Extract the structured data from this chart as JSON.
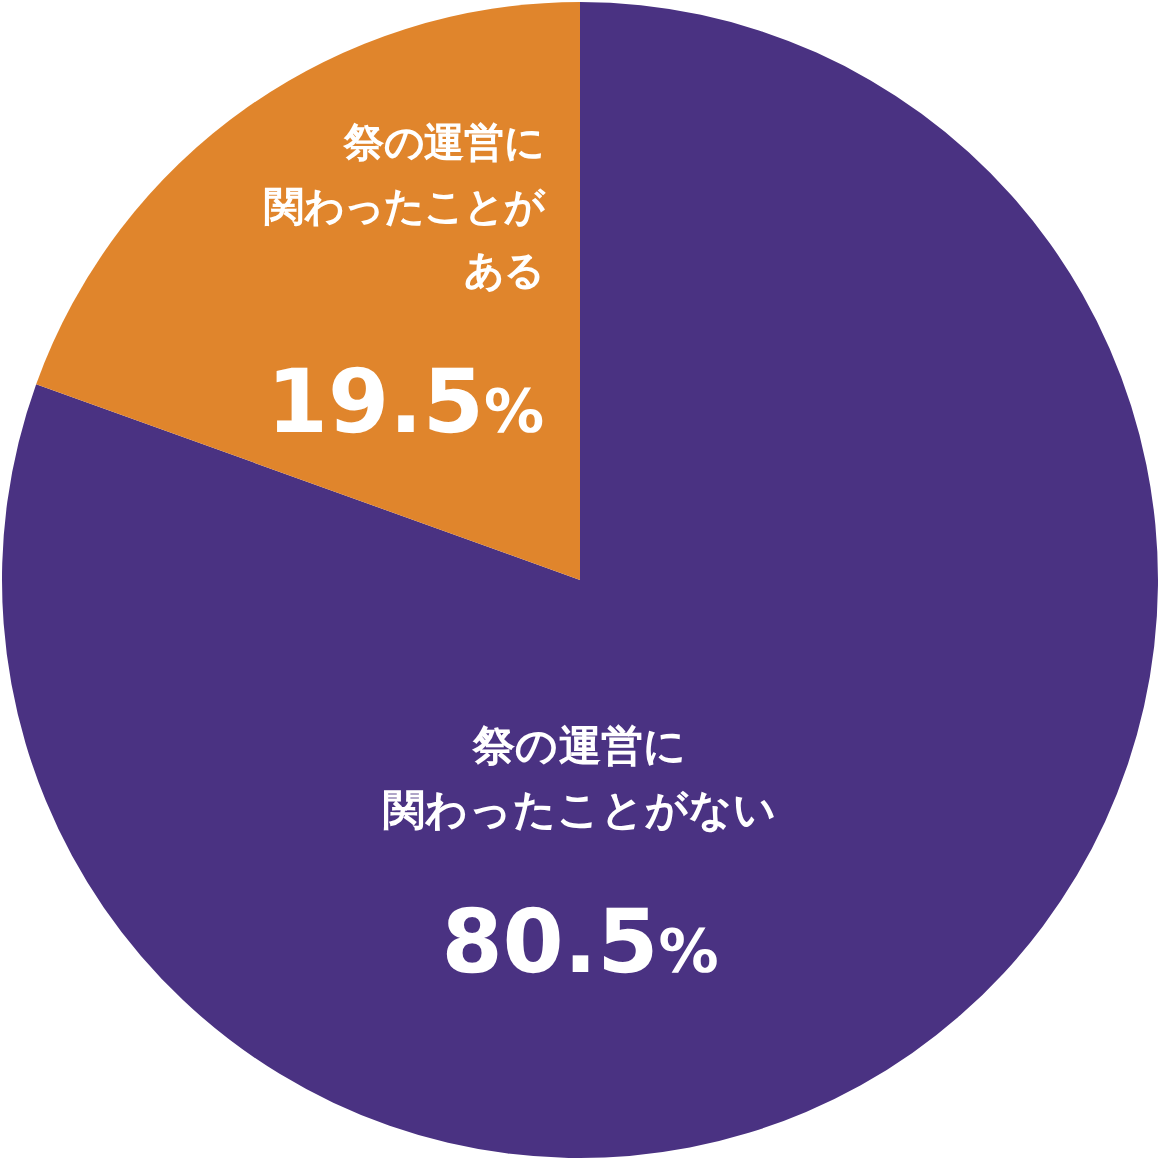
{
  "chart_data": {
    "type": "pie",
    "categories": [
      "祭の運営に関わったことがない",
      "祭の運営に関わったことがある"
    ],
    "values": [
      80.5,
      19.5
    ],
    "colors": [
      "#4a3282",
      "#e0852c"
    ],
    "value_labels": [
      "80.5%",
      "19.5%"
    ]
  }
}
